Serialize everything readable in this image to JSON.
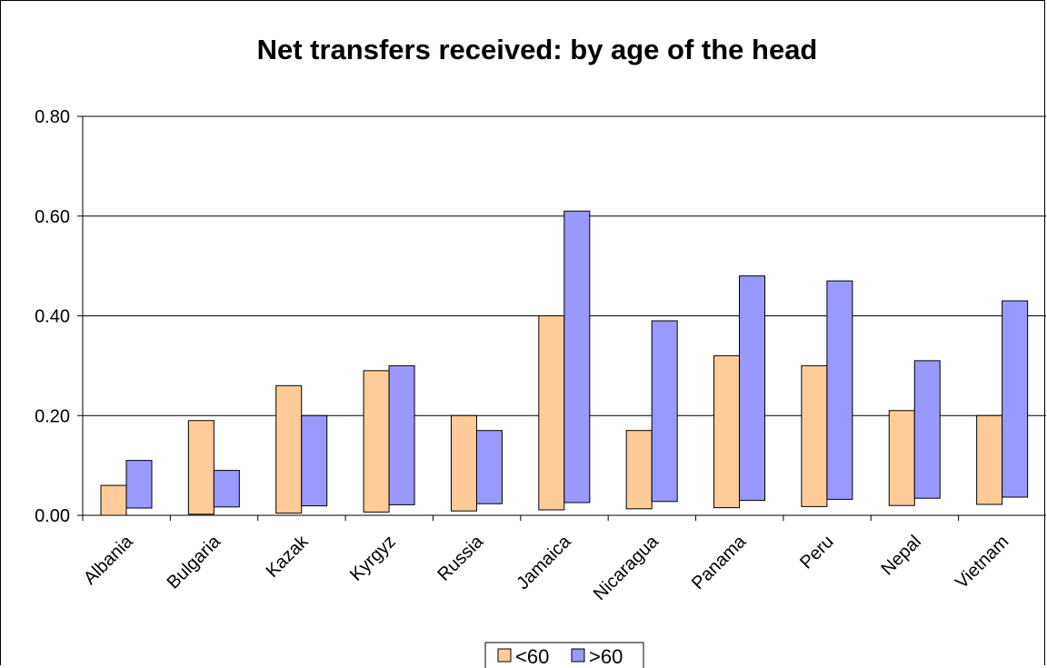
{
  "chart_data": {
    "type": "bar",
    "title": "Net transfers received: by age of the head",
    "xlabel": "",
    "ylabel": "",
    "categories": [
      "Albania",
      "Bulgaria",
      "Kazak",
      "Kyrgyz",
      "Russia",
      "Jamaica",
      "Nicaragua",
      "Panama",
      "Peru",
      "Nepal",
      "Vietnam"
    ],
    "series": [
      {
        "name": "<60",
        "color": "#FFCC99",
        "values": [
          0.06,
          0.19,
          0.26,
          0.29,
          0.2,
          0.4,
          0.17,
          0.32,
          0.3,
          0.21,
          0.2
        ]
      },
      {
        "name": ">60",
        "color": "#9999FF",
        "values": [
          0.11,
          0.09,
          0.2,
          0.3,
          0.17,
          0.61,
          0.39,
          0.48,
          0.47,
          0.31,
          0.43
        ]
      }
    ],
    "ylim": [
      0,
      0.8
    ],
    "yticks": [
      "0.00",
      "0.20",
      "0.40",
      "0.60",
      "0.80"
    ],
    "grid": true,
    "legend_position": "bottom"
  }
}
